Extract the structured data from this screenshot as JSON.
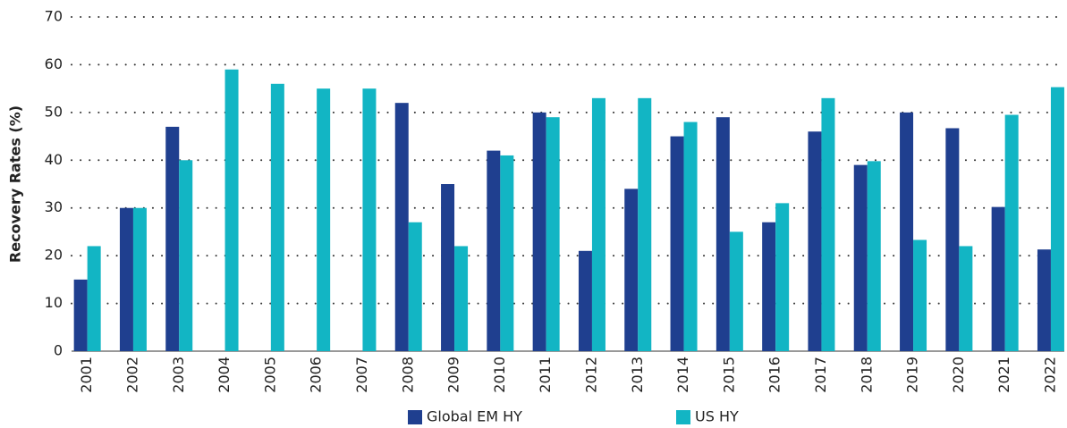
{
  "chart_data": {
    "type": "bar",
    "y_label": "Recovery Rates (%)",
    "categories": [
      "2001",
      "2002",
      "2003",
      "2004",
      "2005",
      "2006",
      "2007",
      "2008",
      "2009",
      "2010",
      "2011",
      "2012",
      "2013",
      "2014",
      "2015",
      "2016",
      "2017",
      "2018",
      "2019",
      "2020",
      "2021",
      "2022"
    ],
    "series": [
      {
        "name": "Global EM HY",
        "color": "#1f3f8f",
        "values": [
          15,
          30,
          47,
          null,
          null,
          null,
          null,
          52,
          35,
          42,
          50,
          21,
          34,
          45,
          49,
          27,
          46,
          39,
          50,
          46.7,
          30.2,
          21.3
        ]
      },
      {
        "name": "US HY",
        "color": "#12b5c4",
        "values": [
          22,
          30,
          40,
          59,
          56,
          55,
          55,
          27,
          22,
          41,
          49,
          53,
          53,
          48,
          25,
          31,
          53,
          39.8,
          23.3,
          22,
          49.5,
          55.3
        ]
      }
    ],
    "ylim": [
      0,
      70
    ],
    "yticks": [
      0,
      10,
      20,
      30,
      40,
      50,
      60,
      70
    ],
    "grid": true,
    "legend": "bottom"
  }
}
